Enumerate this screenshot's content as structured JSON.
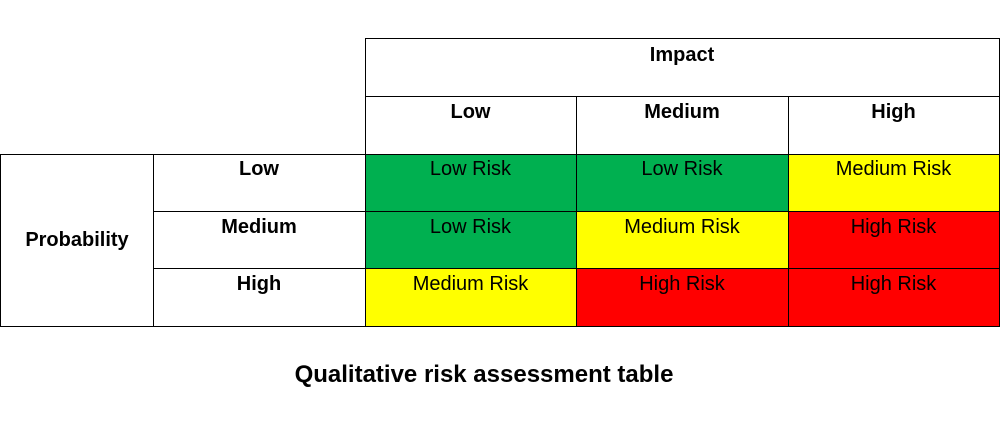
{
  "impact_header": "Impact",
  "impact_levels": [
    "Low",
    "Medium",
    "High"
  ],
  "probability_header": "Probability",
  "probability_levels": [
    "Low",
    "Medium",
    "High"
  ],
  "matrix": [
    [
      "Low Risk",
      "Low Risk",
      "Medium Risk"
    ],
    [
      "Low Risk",
      "Medium Risk",
      "High Risk"
    ],
    [
      "Medium Risk",
      "High Risk",
      "High Risk"
    ]
  ],
  "risk_colors": {
    "Low Risk": "#00b050",
    "Medium Risk": "#ffff00",
    "High Risk": "#ff0000"
  },
  "caption": "Qualitative risk assessment table"
}
